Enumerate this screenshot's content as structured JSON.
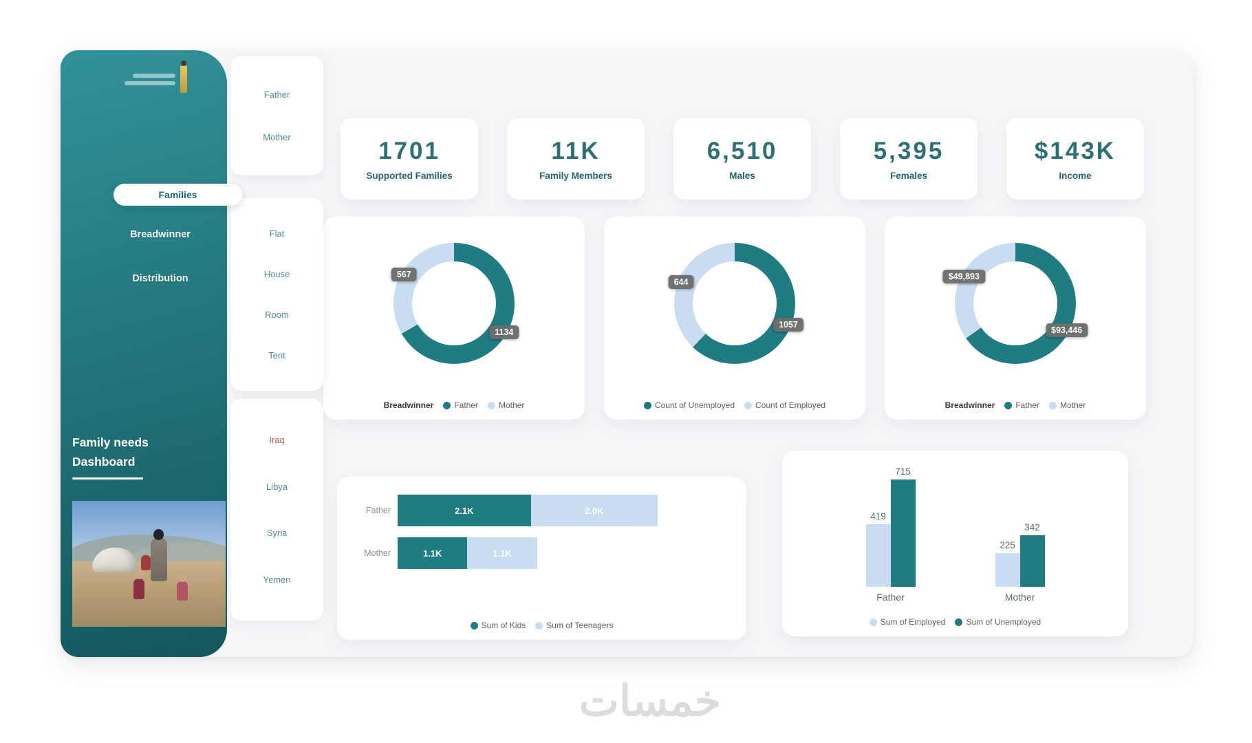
{
  "page": {
    "watermark": "خمسات"
  },
  "colors": {
    "teal": "#1f7c82",
    "light_blue": "#c9ddf2",
    "sidebar_top": "#31929a",
    "sidebar_bottom": "#14565c",
    "canvas": "#f5f6f8",
    "kpi_value": "#2b7077",
    "kpi_label": "#24666d",
    "filter_text": "#4f8b91",
    "filter_highlight": "#c4574e",
    "badge_bg": "#6d6d6d",
    "legend_text": "#605e5c",
    "watermark": "#dcdcdc"
  },
  "sidebar": {
    "nav": [
      {
        "label": "Families",
        "active": true
      },
      {
        "label": "Breadwinner",
        "active": false
      },
      {
        "label": "Distribution",
        "active": false
      }
    ],
    "title": {
      "line1": "Family needs",
      "line2": "Dashboard"
    }
  },
  "filters": {
    "breadwinner": [
      "Father",
      "Mother"
    ],
    "housing": [
      "Flat",
      "House",
      "Room",
      "Tent"
    ],
    "countries": [
      "Iraq",
      "Libya",
      "Syria",
      "Yemen"
    ]
  },
  "kpis": [
    {
      "value": "1701",
      "label": "Supported Families"
    },
    {
      "value": "11K",
      "label": "Family Members"
    },
    {
      "value": "6,510",
      "label": "Males"
    },
    {
      "value": "5,395",
      "label": "Females"
    },
    {
      "value": "$143K",
      "label": "Income"
    }
  ],
  "chart_data": [
    {
      "id": "donut-breadwinner-count",
      "type": "donut",
      "legend_title": "Breadwinner",
      "legend_position": "bottom",
      "slices": [
        {
          "name": "Father",
          "value": 1134,
          "label": "1134",
          "color_key": "teal"
        },
        {
          "name": "Mother",
          "value": 567,
          "label": "567",
          "color_key": "light"
        }
      ]
    },
    {
      "id": "donut-employment-count",
      "type": "donut",
      "legend_title": "",
      "legend_position": "bottom",
      "slices": [
        {
          "name": "Count of Unemployed",
          "value": 1057,
          "label": "1057",
          "color_key": "teal"
        },
        {
          "name": "Count of Employed",
          "value": 644,
          "label": "644",
          "color_key": "light"
        }
      ]
    },
    {
      "id": "donut-income-breadwinner",
      "type": "donut",
      "legend_title": "Breadwinner",
      "legend_position": "bottom",
      "slices": [
        {
          "name": "Father",
          "value": 93446,
          "label": "$93,446",
          "color_key": "teal"
        },
        {
          "name": "Mother",
          "value": 49893,
          "label": "$49,893",
          "color_key": "light"
        }
      ]
    },
    {
      "id": "bar-kids-teenagers",
      "type": "stacked_bar_horizontal",
      "categories": [
        "Father",
        "Mother"
      ],
      "legend_position": "bottom",
      "series": [
        {
          "name": "Sum of Kids",
          "color_key": "teal",
          "values": [
            2100,
            1100
          ],
          "labels": [
            "2.1K",
            "1.1K"
          ]
        },
        {
          "name": "Sum of Teenagers",
          "color_key": "light",
          "values": [
            2000,
            1100
          ],
          "labels": [
            "2.0K",
            "1.1K"
          ]
        }
      ]
    },
    {
      "id": "column-employment",
      "type": "grouped_column",
      "categories": [
        "Father",
        "Mother"
      ],
      "legend_position": "bottom",
      "series": [
        {
          "name": "Sum of Employed",
          "color_key": "light",
          "values": [
            419,
            225
          ]
        },
        {
          "name": "Sum of Unemployed",
          "color_key": "teal",
          "values": [
            715,
            342
          ]
        }
      ]
    }
  ]
}
